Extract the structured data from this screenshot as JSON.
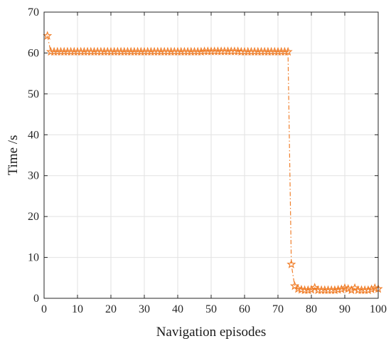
{
  "chart_data": {
    "type": "line",
    "title": "",
    "xlabel": "Navigation episodes",
    "ylabel": "Time /s",
    "xlim": [
      0,
      100
    ],
    "ylim": [
      0,
      70
    ],
    "xticks": [
      0,
      10,
      20,
      30,
      40,
      50,
      60,
      70,
      80,
      90,
      100
    ],
    "yticks": [
      0,
      10,
      20,
      30,
      40,
      50,
      60,
      70
    ],
    "grid": true,
    "legend": "none",
    "series": [
      {
        "color": "#f07f2b",
        "line_style": "dash-dot",
        "marker": "pentagram",
        "x": [
          1,
          2,
          3,
          4,
          5,
          6,
          7,
          8,
          9,
          10,
          11,
          12,
          13,
          14,
          15,
          16,
          17,
          18,
          19,
          20,
          21,
          22,
          23,
          24,
          25,
          26,
          27,
          28,
          29,
          30,
          31,
          32,
          33,
          34,
          35,
          36,
          37,
          38,
          39,
          40,
          41,
          42,
          43,
          44,
          45,
          46,
          47,
          48,
          49,
          50,
          51,
          52,
          53,
          54,
          55,
          56,
          57,
          58,
          59,
          60,
          61,
          62,
          63,
          64,
          65,
          66,
          67,
          68,
          69,
          70,
          71,
          72,
          73,
          74,
          75,
          76,
          77,
          78,
          79,
          80,
          81,
          82,
          83,
          84,
          85,
          86,
          87,
          88,
          89,
          90,
          91,
          92,
          93,
          94,
          95,
          96,
          97,
          98,
          99,
          100
        ],
        "y": [
          64.2,
          60.3,
          60.3,
          60.3,
          60.3,
          60.3,
          60.3,
          60.3,
          60.3,
          60.3,
          60.3,
          60.3,
          60.3,
          60.3,
          60.3,
          60.3,
          60.3,
          60.3,
          60.3,
          60.3,
          60.3,
          60.3,
          60.3,
          60.3,
          60.3,
          60.3,
          60.3,
          60.3,
          60.3,
          60.3,
          60.3,
          60.3,
          60.3,
          60.3,
          60.3,
          60.3,
          60.3,
          60.3,
          60.3,
          60.3,
          60.3,
          60.3,
          60.3,
          60.3,
          60.3,
          60.3,
          60.3,
          60.4,
          60.4,
          60.4,
          60.4,
          60.4,
          60.4,
          60.4,
          60.4,
          60.4,
          60.4,
          60.4,
          60.3,
          60.3,
          60.3,
          60.3,
          60.3,
          60.3,
          60.3,
          60.3,
          60.3,
          60.3,
          60.3,
          60.3,
          60.3,
          60.3,
          60.3,
          8.3,
          3.0,
          2.3,
          2.1,
          2.0,
          2.0,
          2.1,
          2.6,
          2.0,
          2.0,
          2.0,
          2.0,
          2.0,
          2.0,
          2.1,
          2.2,
          2.5,
          2.3,
          2.0,
          2.5,
          2.0,
          2.0,
          2.0,
          2.0,
          2.2,
          2.5,
          2.3
        ]
      }
    ]
  }
}
